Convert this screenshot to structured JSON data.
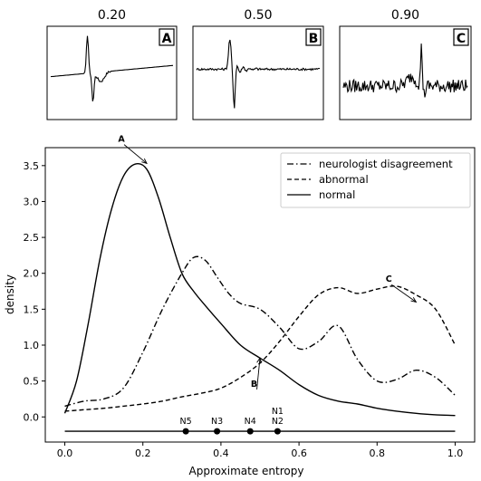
{
  "insets": [
    {
      "title": "0.20",
      "letter": "A",
      "style": "spike"
    },
    {
      "title": "0.50",
      "letter": "B",
      "style": "burst"
    },
    {
      "title": "0.90",
      "letter": "C",
      "style": "noisy"
    }
  ],
  "chart_data": {
    "type": "line",
    "xlabel": "Approximate entropy",
    "ylabel": "density",
    "xlim": [
      -0.05,
      1.05
    ],
    "ylim": [
      -0.35,
      3.75
    ],
    "xticks": [
      "0.0",
      "0.2",
      "0.4",
      "0.6",
      "0.8",
      "1.0"
    ],
    "yticks": [
      "0.0",
      "0.5",
      "1.0",
      "1.5",
      "2.0",
      "2.5",
      "3.0",
      "3.5"
    ],
    "grid": false,
    "legend_position": "top-right",
    "series": [
      {
        "name": "neurologist disagreement",
        "dash": "dashdot",
        "x": [
          0.0,
          0.05,
          0.1,
          0.15,
          0.2,
          0.25,
          0.3,
          0.33,
          0.36,
          0.39,
          0.42,
          0.45,
          0.5,
          0.55,
          0.6,
          0.65,
          0.7,
          0.75,
          0.8,
          0.85,
          0.9,
          0.95,
          1.0
        ],
        "y": [
          0.15,
          0.22,
          0.25,
          0.4,
          0.9,
          1.5,
          2.0,
          2.22,
          2.18,
          1.95,
          1.72,
          1.58,
          1.5,
          1.25,
          0.95,
          1.05,
          1.27,
          0.8,
          0.5,
          0.52,
          0.65,
          0.55,
          0.3
        ]
      },
      {
        "name": "abnormal",
        "dash": "dashed",
        "x": [
          0.0,
          0.05,
          0.1,
          0.15,
          0.2,
          0.25,
          0.3,
          0.35,
          0.4,
          0.45,
          0.5,
          0.55,
          0.6,
          0.65,
          0.7,
          0.75,
          0.8,
          0.85,
          0.9,
          0.95,
          1.0
        ],
        "y": [
          0.08,
          0.1,
          0.12,
          0.15,
          0.18,
          0.22,
          0.28,
          0.33,
          0.4,
          0.55,
          0.75,
          1.05,
          1.4,
          1.7,
          1.8,
          1.72,
          1.78,
          1.82,
          1.7,
          1.5,
          1.0
        ]
      },
      {
        "name": "normal",
        "dash": "solid",
        "x": [
          0.0,
          0.03,
          0.06,
          0.09,
          0.12,
          0.15,
          0.18,
          0.21,
          0.24,
          0.27,
          0.3,
          0.33,
          0.36,
          0.4,
          0.45,
          0.5,
          0.55,
          0.6,
          0.65,
          0.7,
          0.75,
          0.8,
          0.85,
          0.9,
          0.95,
          1.0
        ],
        "y": [
          0.05,
          0.5,
          1.3,
          2.2,
          2.9,
          3.35,
          3.52,
          3.45,
          3.05,
          2.5,
          2.0,
          1.75,
          1.55,
          1.3,
          1.0,
          0.82,
          0.65,
          0.45,
          0.3,
          0.22,
          0.18,
          0.12,
          0.08,
          0.05,
          0.03,
          0.02
        ]
      }
    ],
    "annotations": [
      {
        "text": "A",
        "x": 0.21,
        "y": 3.53
      },
      {
        "text": "B",
        "x": 0.5,
        "y": 0.82
      },
      {
        "text": "C",
        "x": 0.9,
        "y": 1.6
      }
    ],
    "baseline": {
      "y": -0.2,
      "points": [
        {
          "label": "N5",
          "x": 0.31
        },
        {
          "label": "N3",
          "x": 0.39
        },
        {
          "label": "N4",
          "x": 0.475
        },
        {
          "label": "N1\nN2",
          "x": 0.545
        }
      ]
    }
  }
}
